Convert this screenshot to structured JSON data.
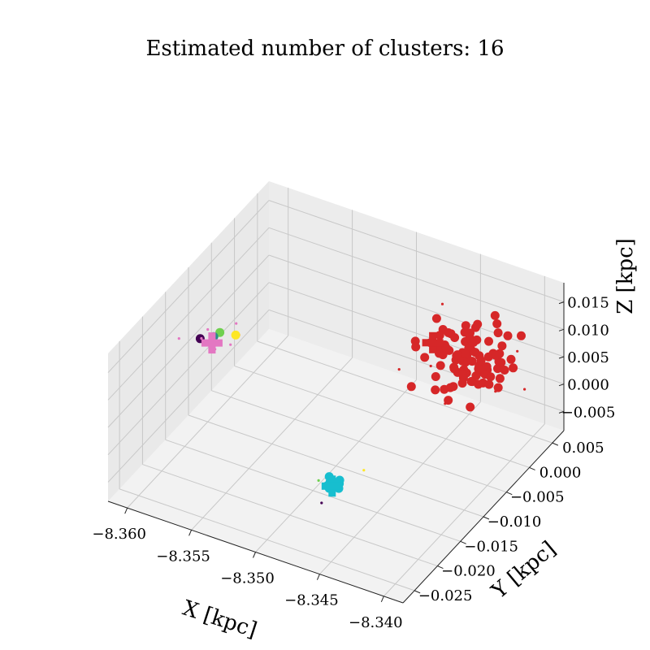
{
  "chart_data": {
    "type": "scatter",
    "projection": "3d",
    "title": "Estimated number of clusters: 16",
    "xlabel": "X [kpc]",
    "ylabel": "Y [kpc]",
    "zlabel": "Z [kpc]",
    "xlim": [
      -8.3615,
      -8.3385
    ],
    "ylim": [
      -0.0275,
      0.0075
    ],
    "zlim": [
      -0.0085,
      0.0185
    ],
    "x_ticks": [
      "−8.360",
      "−8.355",
      "−8.350",
      "−8.345",
      "−8.340"
    ],
    "y_ticks": [
      "−0.025",
      "−0.020",
      "−0.015",
      "−0.010",
      "−0.005",
      "0.000",
      "0.005"
    ],
    "z_ticks": [
      "−0.005",
      "0.000",
      "0.005",
      "0.010",
      "0.015"
    ],
    "grid": true,
    "pane_color": "#f2f2f2",
    "grid_color": "#c8c8c8",
    "series": [
      {
        "color": "#d62728",
        "marker": "circle",
        "center": [
          -8.342,
          -0.004,
          0.0125
        ],
        "count": 95,
        "spread": [
          0.0032,
          0.006,
          0.0042
        ],
        "outlier_count": 12
      },
      {
        "color": "#17becf",
        "marker": "circle",
        "center": [
          -8.347,
          -0.019,
          -0.0015
        ],
        "count": 9,
        "spread": [
          0.0008,
          0.0012,
          0.0009
        ],
        "outlier_count": 1
      },
      {
        "color": "#e377c2",
        "marker": "small",
        "center": [
          -8.3595,
          -0.0105,
          0.0065
        ],
        "count": 0,
        "spread": [
          0.0012,
          0.0018,
          0.0015
        ],
        "outlier_count": 10
      },
      {
        "color": "#fde725",
        "marker": "circle",
        "points": [
          [
            -8.358,
            -0.0095,
            0.0085
          ]
        ]
      },
      {
        "color": "#6fd04f",
        "marker": "circle",
        "points": [
          [
            -8.3592,
            -0.0096,
            0.0081
          ]
        ]
      },
      {
        "color": "#2a8b8b",
        "marker": "circle",
        "points": [
          [
            -8.3596,
            -0.0098,
            0.0072
          ]
        ]
      },
      {
        "color": "#440154",
        "marker": "circle",
        "points": [
          [
            -8.3608,
            -0.0094,
            0.0055
          ]
        ]
      },
      {
        "color": "#440154",
        "marker": "small",
        "points": [
          [
            -8.347,
            -0.0215,
            -0.0025
          ]
        ]
      },
      {
        "color": "#6fd04f",
        "marker": "small",
        "points": [
          [
            -8.3482,
            -0.0188,
            -0.0018
          ]
        ]
      },
      {
        "color": "#fde725",
        "marker": "small",
        "points": [
          [
            -8.3455,
            -0.0165,
            0.0002
          ]
        ]
      }
    ],
    "centroids": [
      {
        "color": "#d62728",
        "position": [
          -8.3455,
          -0.0015,
          0.01
        ]
      },
      {
        "color": "#17becf",
        "position": [
          -8.347,
          -0.0192,
          -0.0015
        ]
      },
      {
        "color": "#e377c2",
        "position": [
          -8.3596,
          -0.0102,
          0.0064
        ]
      }
    ]
  }
}
